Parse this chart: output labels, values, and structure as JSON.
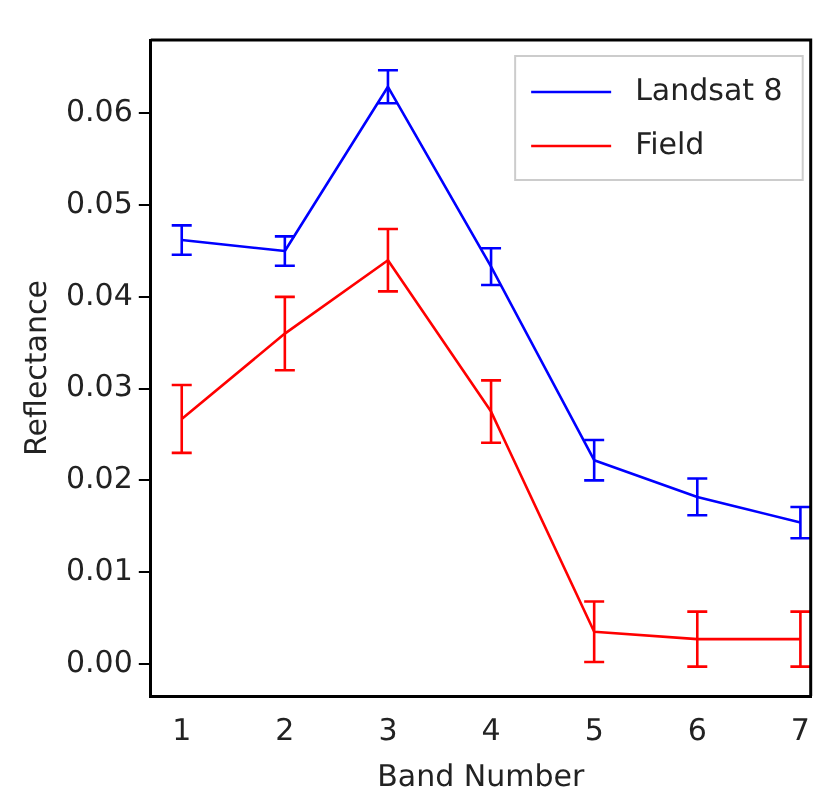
{
  "chart_data": {
    "type": "line",
    "xlabel": "Band Number",
    "ylabel": "Reflectance",
    "x": [
      1,
      2,
      3,
      4,
      5,
      6,
      7
    ],
    "series": [
      {
        "name": "Landsat 8",
        "color": "#0000ff",
        "values": [
          0.0462,
          0.045,
          0.0629,
          0.0433,
          0.0222,
          0.0182,
          0.0154
        ],
        "errors": [
          0.0016,
          0.0016,
          0.0018,
          0.002,
          0.0022,
          0.002,
          0.0017
        ]
      },
      {
        "name": "Field",
        "color": "#ff0000",
        "values": [
          0.0267,
          0.036,
          0.044,
          0.0275,
          0.0035,
          0.0027,
          0.0027
        ],
        "errors": [
          0.0037,
          0.004,
          0.0034,
          0.0034,
          0.0033,
          0.003,
          0.003
        ]
      }
    ],
    "xlim": [
      0.7,
      7.1
    ],
    "xticks": [
      1,
      2,
      3,
      4,
      5,
      6,
      7
    ],
    "ylim": [
      -0.0035,
      0.068
    ],
    "yticks": [
      {
        "value": 0,
        "label": "0.00"
      },
      {
        "value": 0.01,
        "label": "0.01"
      },
      {
        "value": 0.02,
        "label": "0.02"
      },
      {
        "value": 0.03,
        "label": "0.03"
      },
      {
        "value": 0.04,
        "label": "0.04"
      },
      {
        "value": 0.05,
        "label": "0.05"
      },
      {
        "value": 0.06,
        "label": "0.06"
      }
    ],
    "legend": "top right",
    "grid": false,
    "line_style": "solid"
  }
}
